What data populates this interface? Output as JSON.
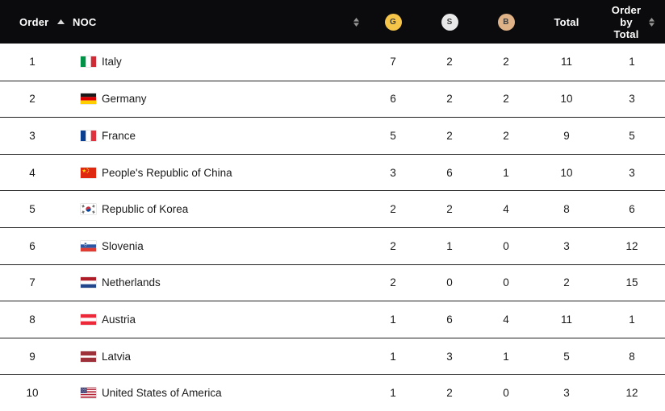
{
  "table": {
    "columns": {
      "order": "Order",
      "noc": "NOC",
      "gold": "G",
      "silver": "S",
      "bronze": "B",
      "total": "Total",
      "order_by_total": "Order by Total"
    },
    "sort": {
      "active_column": "Order",
      "direction": "ascending"
    },
    "rows": [
      {
        "order": "1",
        "noc": "Italy",
        "flag": "ITA",
        "gold": "7",
        "silver": "2",
        "bronze": "2",
        "total": "11",
        "order_by_total": "1"
      },
      {
        "order": "2",
        "noc": "Germany",
        "flag": "GER",
        "gold": "6",
        "silver": "2",
        "bronze": "2",
        "total": "10",
        "order_by_total": "3"
      },
      {
        "order": "3",
        "noc": "France",
        "flag": "FRA",
        "gold": "5",
        "silver": "2",
        "bronze": "2",
        "total": "9",
        "order_by_total": "5"
      },
      {
        "order": "4",
        "noc": "People's Republic of China",
        "flag": "CHN",
        "gold": "3",
        "silver": "6",
        "bronze": "1",
        "total": "10",
        "order_by_total": "3"
      },
      {
        "order": "5",
        "noc": "Republic of Korea",
        "flag": "KOR",
        "gold": "2",
        "silver": "2",
        "bronze": "4",
        "total": "8",
        "order_by_total": "6"
      },
      {
        "order": "6",
        "noc": "Slovenia",
        "flag": "SLO",
        "gold": "2",
        "silver": "1",
        "bronze": "0",
        "total": "3",
        "order_by_total": "12"
      },
      {
        "order": "7",
        "noc": "Netherlands",
        "flag": "NED",
        "gold": "2",
        "silver": "0",
        "bronze": "0",
        "total": "2",
        "order_by_total": "15"
      },
      {
        "order": "8",
        "noc": "Austria",
        "flag": "AUT",
        "gold": "1",
        "silver": "6",
        "bronze": "4",
        "total": "11",
        "order_by_total": "1"
      },
      {
        "order": "9",
        "noc": "Latvia",
        "flag": "LAT",
        "gold": "1",
        "silver": "3",
        "bronze": "1",
        "total": "5",
        "order_by_total": "8"
      },
      {
        "order": "10",
        "noc": "United States of America",
        "flag": "USA",
        "gold": "1",
        "silver": "2",
        "bronze": "0",
        "total": "3",
        "order_by_total": "12"
      }
    ]
  },
  "colors": {
    "header_bg": "#0b0b0d",
    "gold": "#f5c54a",
    "silver": "#e9e9e9",
    "bronze": "#dfb287",
    "row_border": "#212121"
  }
}
